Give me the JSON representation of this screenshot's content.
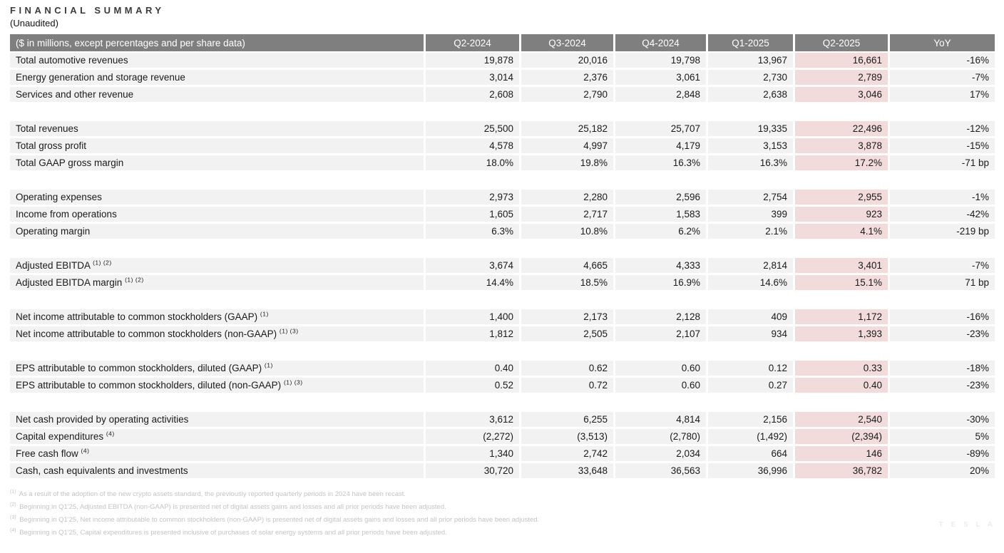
{
  "page": {
    "title": "FINANCIAL SUMMARY",
    "subtitle": "(Unaudited)",
    "watermark": "T E S L A"
  },
  "colors": {
    "header_bg": "#7f7f7f",
    "header_text": "#ffffff",
    "row_bg": "#f2f2f2",
    "highlight_bg": "#f2dcdb",
    "footnote_text": "#c4c4c4"
  },
  "table": {
    "header": [
      "($ in millions, except percentages and per share data)",
      "Q2-2024",
      "Q3-2024",
      "Q4-2024",
      "Q1-2025",
      "Q2-2025",
      "YoY"
    ],
    "highlight_column": "Q2-2025",
    "highlight_index": 4,
    "rows": [
      {
        "label": "Total automotive revenues",
        "sup": "",
        "values": [
          "19,878",
          "20,016",
          "19,798",
          "13,967",
          "16,661",
          "-16%"
        ]
      },
      {
        "label": "Energy generation and storage revenue",
        "sup": "",
        "values": [
          "3,014",
          "2,376",
          "3,061",
          "2,730",
          "2,789",
          "-7%"
        ]
      },
      {
        "label": "Services and other revenue",
        "sup": "",
        "values": [
          "2,608",
          "2,790",
          "2,848",
          "2,638",
          "3,046",
          "17%"
        ]
      },
      {
        "spacer": true
      },
      {
        "label": "Total revenues",
        "sup": "",
        "values": [
          "25,500",
          "25,182",
          "25,707",
          "19,335",
          "22,496",
          "-12%"
        ]
      },
      {
        "label": "Total gross profit",
        "sup": "",
        "values": [
          "4,578",
          "4,997",
          "4,179",
          "3,153",
          "3,878",
          "-15%"
        ]
      },
      {
        "label": "Total GAAP gross margin",
        "sup": "",
        "values": [
          "18.0%",
          "19.8%",
          "16.3%",
          "16.3%",
          "17.2%",
          "-71 bp"
        ]
      },
      {
        "spacer": true
      },
      {
        "label": "Operating expenses",
        "sup": "",
        "values": [
          "2,973",
          "2,280",
          "2,596",
          "2,754",
          "2,955",
          "-1%"
        ]
      },
      {
        "label": "Income from operations",
        "sup": "",
        "values": [
          "1,605",
          "2,717",
          "1,583",
          "399",
          "923",
          "-42%"
        ]
      },
      {
        "label": "Operating margin",
        "sup": "",
        "values": [
          "6.3%",
          "10.8%",
          "6.2%",
          "2.1%",
          "4.1%",
          "-219 bp"
        ]
      },
      {
        "spacer": true
      },
      {
        "label": "Adjusted EBITDA",
        "sup": "(1) (2)",
        "values": [
          "3,674",
          "4,665",
          "4,333",
          "2,814",
          "3,401",
          "-7%"
        ]
      },
      {
        "label": "Adjusted EBITDA margin",
        "sup": "(1) (2)",
        "values": [
          "14.4%",
          "18.5%",
          "16.9%",
          "14.6%",
          "15.1%",
          "71 bp"
        ]
      },
      {
        "spacer": true
      },
      {
        "label": "Net income attributable to common stockholders (GAAP)",
        "sup": "(1)",
        "values": [
          "1,400",
          "2,173",
          "2,128",
          "409",
          "1,172",
          "-16%"
        ]
      },
      {
        "label": "Net income attributable to common stockholders (non-GAAP)",
        "sup": "(1) (3)",
        "values": [
          "1,812",
          "2,505",
          "2,107",
          "934",
          "1,393",
          "-23%"
        ]
      },
      {
        "spacer": true
      },
      {
        "label": "EPS attributable to common stockholders, diluted (GAAP)",
        "sup": "(1)",
        "values": [
          "0.40",
          "0.62",
          "0.60",
          "0.12",
          "0.33",
          "-18%"
        ]
      },
      {
        "label": "EPS attributable to common stockholders, diluted (non-GAAP)",
        "sup": "(1) (3)",
        "values": [
          "0.52",
          "0.72",
          "0.60",
          "0.27",
          "0.40",
          "-23%"
        ]
      },
      {
        "spacer": true
      },
      {
        "label": "Net cash provided by operating activities",
        "sup": "",
        "values": [
          "3,612",
          "6,255",
          "4,814",
          "2,156",
          "2,540",
          "-30%"
        ]
      },
      {
        "label": "Capital expenditures",
        "sup": "(4)",
        "values": [
          "(2,272)",
          "(3,513)",
          "(2,780)",
          "(1,492)",
          "(2,394)",
          "5%"
        ]
      },
      {
        "label": "Free cash flow",
        "sup": "(4)",
        "values": [
          "1,340",
          "2,742",
          "2,034",
          "664",
          "146",
          "-89%"
        ]
      },
      {
        "label": "Cash, cash equivalents and investments",
        "sup": "",
        "values": [
          "30,720",
          "33,648",
          "36,563",
          "36,996",
          "36,782",
          "20%"
        ]
      }
    ]
  },
  "footnotes": [
    {
      "sup": "(1)",
      "text": "As a result of the adoption of the new crypto assets standard, the previously reported quarterly periods in 2024 have been recast."
    },
    {
      "sup": "(2)",
      "text": "Beginning in Q1'25, Adjusted EBITDA (non-GAAP) is presented net of digital assets gains and losses and all prior periods have been adjusted."
    },
    {
      "sup": "(3)",
      "text": "Beginning in Q1'25, Net income attributable to common stockholders (non-GAAP) is presented net of digital assets gains and losses and all prior periods have been adjusted."
    },
    {
      "sup": "(4)",
      "text": "Beginning in Q1'25, Capital expenditures is presented inclusive of purchases of solar energy systems and all prior periods have been adjusted."
    }
  ]
}
